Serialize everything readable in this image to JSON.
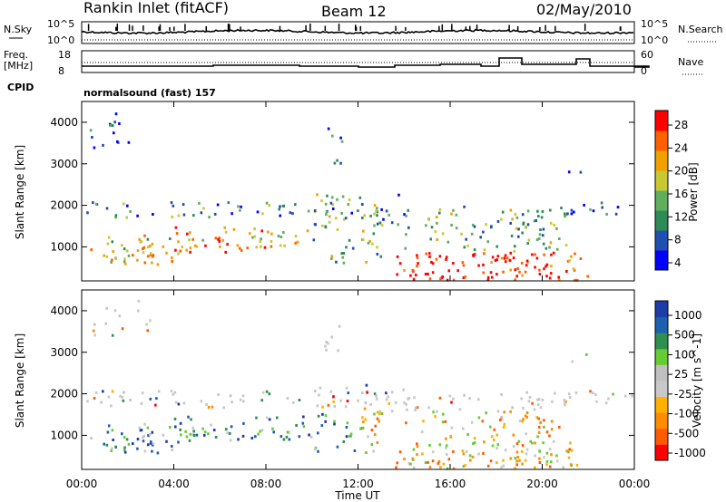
{
  "header": {
    "station": "Rankin Inlet (fitACF)",
    "beam": "Beam 12",
    "date": "02/May/2010"
  },
  "top_panels": {
    "nsky_label": "N.Sky",
    "nsearch_label": "N.Search",
    "noise_ticks": [
      "10^5",
      "10^0"
    ],
    "freq_label": "Freq.",
    "freq_unit": "[MHz]",
    "freq_ticks": [
      "18",
      "8"
    ],
    "nave_label": "Nave",
    "nave_ticks": [
      "60",
      "0"
    ],
    "cpid_label": "CPID",
    "cpid_value": "normalsound (fast) 157"
  },
  "colors": {
    "power_scale": [
      "#0000ff",
      "#1f4fb0",
      "#2e8b57",
      "#5faf5f",
      "#c8c832",
      "#f0a000",
      "#ff6000",
      "#ff0000"
    ],
    "velocity_scale": [
      "#ff0000",
      "#ff5a00",
      "#ff8c00",
      "#ffb000",
      "#c8c8c8",
      "#c0c0c0",
      "#66cc33",
      "#2f8f4f",
      "#1f5fb0",
      "#1c3ca8"
    ]
  },
  "chart_data": [
    {
      "type": "heatmap",
      "name": "power",
      "ylabel": "Slant Range [km]",
      "xlabel": "Time UT",
      "ylim": [
        180,
        4500
      ],
      "xlim": [
        0,
        24
      ],
      "x_ticks": [
        "00:00",
        "04:00",
        "08:00",
        "12:00",
        "16:00",
        "20:00",
        "00:00"
      ],
      "y_ticks": [
        1000,
        2000,
        3000,
        4000
      ],
      "colorbar_label": "Power [dB]",
      "colorbar_ticks": [
        "28",
        "24",
        "20",
        "16",
        "12",
        "8",
        "4"
      ],
      "colorbar_range": [
        0,
        30
      ]
    },
    {
      "type": "heatmap",
      "name": "velocity",
      "ylabel": "Slant Range [km]",
      "xlabel": "Time UT",
      "ylim": [
        180,
        4500
      ],
      "xlim": [
        0,
        24
      ],
      "x_ticks": [
        "00:00",
        "04:00",
        "08:00",
        "12:00",
        "16:00",
        "20:00",
        "00:00"
      ],
      "y_ticks": [
        1000,
        2000,
        3000,
        4000
      ],
      "colorbar_label": "Velocity [m s^-1]",
      "colorbar_ticks": [
        "1000",
        "500",
        "100",
        "25",
        "-25",
        "-100",
        "-500",
        "-1000"
      ]
    }
  ]
}
